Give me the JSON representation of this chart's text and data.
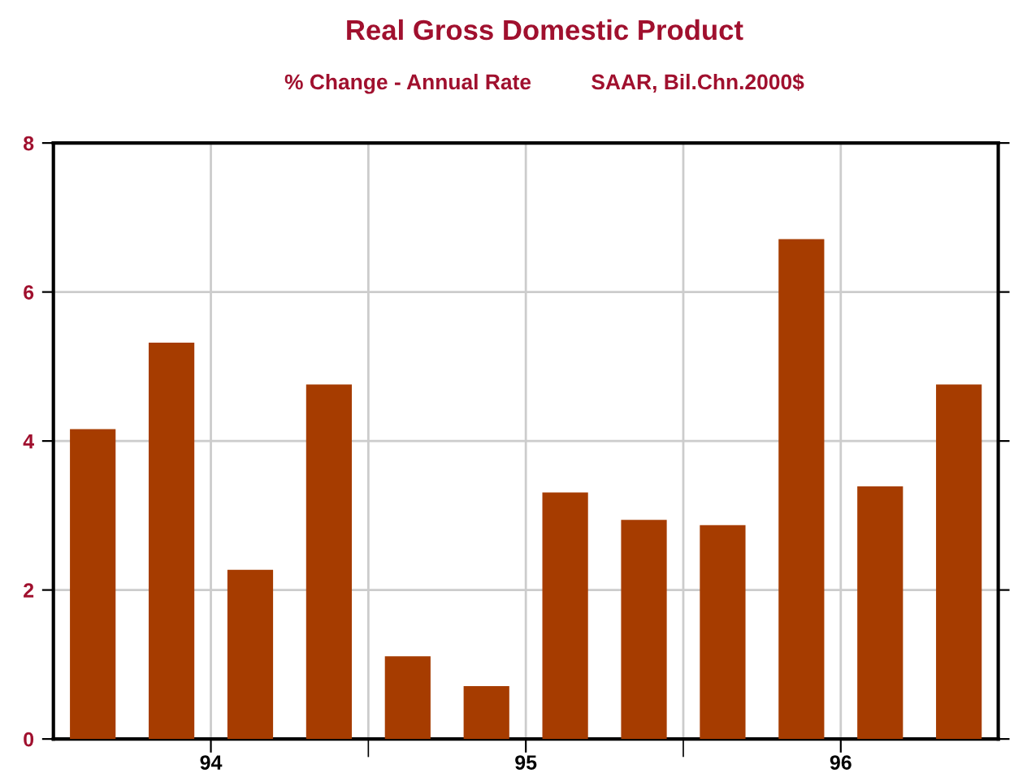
{
  "chart_data": {
    "type": "bar",
    "title": "Real Gross Domestic Product",
    "subtitle": "% Change - Annual Rate          SAAR, Bil.Chn.2000$",
    "categories": [
      null,
      "94",
      null,
      null,
      null,
      "95",
      null,
      null,
      null,
      "96",
      null,
      null
    ],
    "values": [
      4.16,
      5.32,
      2.27,
      4.76,
      1.11,
      0.71,
      3.31,
      2.94,
      2.87,
      6.71,
      3.39,
      4.76
    ],
    "color": "#a63c00",
    "ylim": [
      0,
      8
    ],
    "yticks": [
      0,
      2,
      4,
      6,
      8
    ],
    "grid": true
  }
}
